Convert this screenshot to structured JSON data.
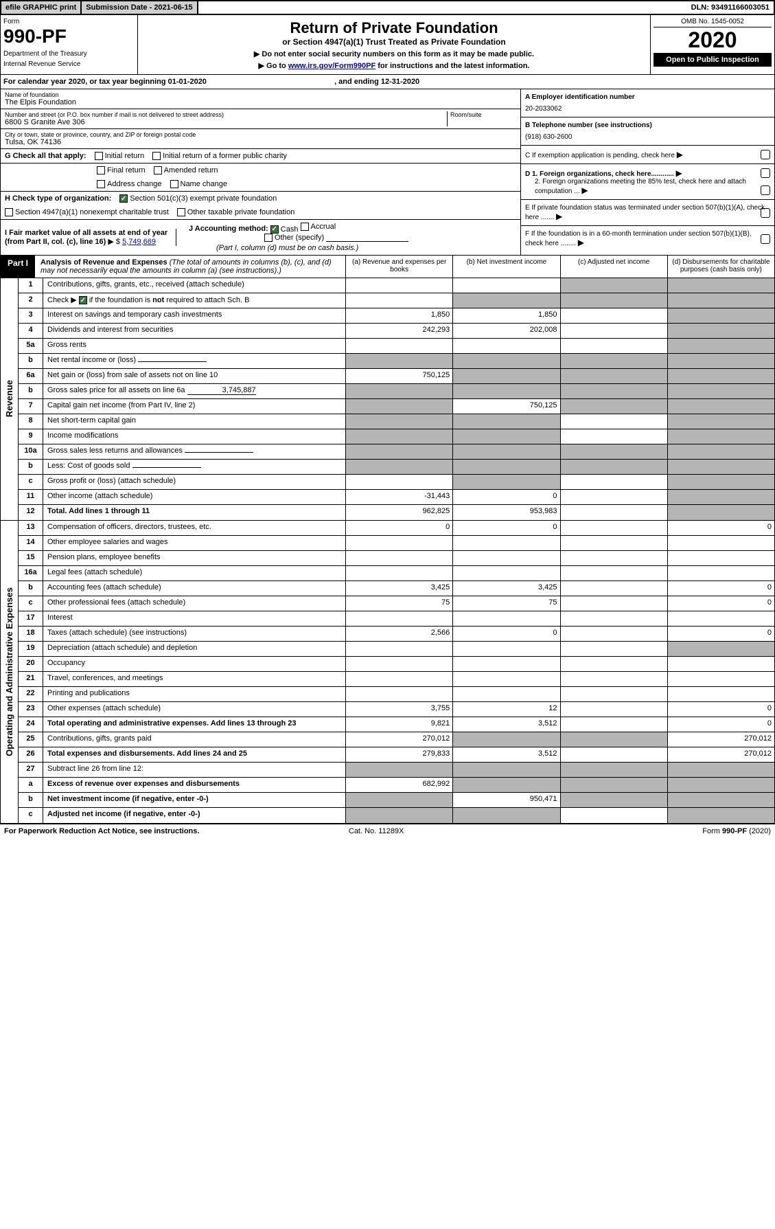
{
  "top": {
    "efile": "efile GRAPHIC print",
    "submission": "Submission Date - 2021-06-15",
    "dln": "DLN: 93491166003051"
  },
  "header": {
    "form_label": "Form",
    "form_number": "990-PF",
    "dept1": "Department of the Treasury",
    "dept2": "Internal Revenue Service",
    "title": "Return of Private Foundation",
    "subtitle": "or Section 4947(a)(1) Trust Treated as Private Foundation",
    "note1": "▶ Do not enter social security numbers on this form as it may be made public.",
    "note2_pre": "▶ Go to ",
    "note2_link": "www.irs.gov/Form990PF",
    "note2_post": " for instructions and the latest information.",
    "omb": "OMB No. 1545-0052",
    "year": "2020",
    "open": "Open to Public Inspection"
  },
  "calyear": {
    "text_pre": "For calendar year 2020, or tax year beginning ",
    "begin": "01-01-2020",
    "mid": " , and ending ",
    "end": "12-31-2020"
  },
  "info": {
    "name_lbl": "Name of foundation",
    "name_val": "The Elpis Foundation",
    "addr_lbl": "Number and street (or P.O. box number if mail is not delivered to street address)",
    "addr_val": "6800 S Granite Ave 306",
    "room_lbl": "Room/suite",
    "city_lbl": "City or town, state or province, country, and ZIP or foreign postal code",
    "city_val": "Tulsa, OK  74136",
    "a_lbl": "A Employer identification number",
    "a_val": "20-2033062",
    "b_lbl": "B Telephone number (see instructions)",
    "b_val": "(918) 630-2600",
    "c_lbl": "C  If exemption application is pending, check here",
    "d1": "D 1. Foreign organizations, check here............",
    "d2": "2. Foreign organizations meeting the 85% test, check here and attach computation ...",
    "e_lbl": "E  If private foundation status was terminated under section 507(b)(1)(A), check here .......",
    "f_lbl": "F  If the foundation is in a 60-month termination under section 507(b)(1)(B), check here ........"
  },
  "g": {
    "label": "G Check all that apply:",
    "initial": "Initial return",
    "initial_former": "Initial return of a former public charity",
    "final": "Final return",
    "amended": "Amended return",
    "addr_change": "Address change",
    "name_change": "Name change"
  },
  "h": {
    "label": "H Check type of organization:",
    "s501": "Section 501(c)(3) exempt private foundation",
    "s4947": "Section 4947(a)(1) nonexempt charitable trust",
    "other": "Other taxable private foundation"
  },
  "i": {
    "label": "I Fair market value of all assets at end of year (from Part II, col. (c), line 16)",
    "val": "5,749,669"
  },
  "j": {
    "label": "J Accounting method:",
    "cash": "Cash",
    "accrual": "Accrual",
    "other": "Other (specify)",
    "note": "(Part I, column (d) must be on cash basis.)"
  },
  "part1": {
    "label": "Part I",
    "title": "Analysis of Revenue and Expenses",
    "note": " (The total of amounts in columns (b), (c), and (d) may not necessarily equal the amounts in column (a) (see instructions).)",
    "col_a": "(a) Revenue and expenses per books",
    "col_b": "(b) Net investment income",
    "col_c": "(c) Adjusted net income",
    "col_d": "(d) Disbursements for charitable purposes (cash basis only)"
  },
  "sections": {
    "revenue": "Revenue",
    "opex": "Operating and Administrative Expenses"
  },
  "rows": [
    {
      "n": "1",
      "d": "Contributions, gifts, grants, etc., received (attach schedule)",
      "a": "",
      "b": "",
      "c": "g",
      "dd": "g"
    },
    {
      "n": "2",
      "d": "Check ▶ ☑ if the foundation is not required to attach Sch. B",
      "a": "",
      "b": "g",
      "c": "g",
      "dd": "g",
      "chk": true
    },
    {
      "n": "3",
      "d": "Interest on savings and temporary cash investments",
      "a": "1,850",
      "b": "1,850",
      "c": "",
      "dd": "g"
    },
    {
      "n": "4",
      "d": "Dividends and interest from securities",
      "a": "242,293",
      "b": "202,008",
      "c": "",
      "dd": "g"
    },
    {
      "n": "5a",
      "d": "Gross rents",
      "a": "",
      "b": "",
      "c": "",
      "dd": "g"
    },
    {
      "n": "b",
      "d": "Net rental income or (loss)",
      "a": "g",
      "b": "g",
      "c": "g",
      "dd": "g",
      "inline": true
    },
    {
      "n": "6a",
      "d": "Net gain or (loss) from sale of assets not on line 10",
      "a": "750,125",
      "b": "g",
      "c": "g",
      "dd": "g"
    },
    {
      "n": "b",
      "d": "Gross sales price for all assets on line 6a",
      "a": "g",
      "b": "g",
      "c": "g",
      "dd": "g",
      "inline": true,
      "inlineval": "3,745,887"
    },
    {
      "n": "7",
      "d": "Capital gain net income (from Part IV, line 2)",
      "a": "g",
      "b": "750,125",
      "c": "g",
      "dd": "g"
    },
    {
      "n": "8",
      "d": "Net short-term capital gain",
      "a": "g",
      "b": "g",
      "c": "",
      "dd": "g"
    },
    {
      "n": "9",
      "d": "Income modifications",
      "a": "g",
      "b": "g",
      "c": "",
      "dd": "g"
    },
    {
      "n": "10a",
      "d": "Gross sales less returns and allowances",
      "a": "g",
      "b": "g",
      "c": "g",
      "dd": "g",
      "inline": true
    },
    {
      "n": "b",
      "d": "Less: Cost of goods sold",
      "a": "g",
      "b": "g",
      "c": "g",
      "dd": "g",
      "inline": true
    },
    {
      "n": "c",
      "d": "Gross profit or (loss) (attach schedule)",
      "a": "",
      "b": "g",
      "c": "",
      "dd": "g"
    },
    {
      "n": "11",
      "d": "Other income (attach schedule)",
      "a": "-31,443",
      "b": "0",
      "c": "",
      "dd": "g"
    },
    {
      "n": "12",
      "d": "Total. Add lines 1 through 11",
      "a": "962,825",
      "b": "953,983",
      "c": "",
      "dd": "g",
      "bold": true
    }
  ],
  "oprows": [
    {
      "n": "13",
      "d": "Compensation of officers, directors, trustees, etc.",
      "a": "0",
      "b": "0",
      "c": "",
      "dd": "0"
    },
    {
      "n": "14",
      "d": "Other employee salaries and wages",
      "a": "",
      "b": "",
      "c": "",
      "dd": ""
    },
    {
      "n": "15",
      "d": "Pension plans, employee benefits",
      "a": "",
      "b": "",
      "c": "",
      "dd": ""
    },
    {
      "n": "16a",
      "d": "Legal fees (attach schedule)",
      "a": "",
      "b": "",
      "c": "",
      "dd": ""
    },
    {
      "n": "b",
      "d": "Accounting fees (attach schedule)",
      "a": "3,425",
      "b": "3,425",
      "c": "",
      "dd": "0"
    },
    {
      "n": "c",
      "d": "Other professional fees (attach schedule)",
      "a": "75",
      "b": "75",
      "c": "",
      "dd": "0"
    },
    {
      "n": "17",
      "d": "Interest",
      "a": "",
      "b": "",
      "c": "",
      "dd": ""
    },
    {
      "n": "18",
      "d": "Taxes (attach schedule) (see instructions)",
      "a": "2,566",
      "b": "0",
      "c": "",
      "dd": "0"
    },
    {
      "n": "19",
      "d": "Depreciation (attach schedule) and depletion",
      "a": "",
      "b": "",
      "c": "",
      "dd": "g"
    },
    {
      "n": "20",
      "d": "Occupancy",
      "a": "",
      "b": "",
      "c": "",
      "dd": ""
    },
    {
      "n": "21",
      "d": "Travel, conferences, and meetings",
      "a": "",
      "b": "",
      "c": "",
      "dd": ""
    },
    {
      "n": "22",
      "d": "Printing and publications",
      "a": "",
      "b": "",
      "c": "",
      "dd": ""
    },
    {
      "n": "23",
      "d": "Other expenses (attach schedule)",
      "a": "3,755",
      "b": "12",
      "c": "",
      "dd": "0"
    },
    {
      "n": "24",
      "d": "Total operating and administrative expenses. Add lines 13 through 23",
      "a": "9,821",
      "b": "3,512",
      "c": "",
      "dd": "0",
      "bold": true
    },
    {
      "n": "25",
      "d": "Contributions, gifts, grants paid",
      "a": "270,012",
      "b": "g",
      "c": "g",
      "dd": "270,012"
    },
    {
      "n": "26",
      "d": "Total expenses and disbursements. Add lines 24 and 25",
      "a": "279,833",
      "b": "3,512",
      "c": "",
      "dd": "270,012",
      "bold": true
    },
    {
      "n": "27",
      "d": "Subtract line 26 from line 12:",
      "a": "g",
      "b": "g",
      "c": "g",
      "dd": "g"
    },
    {
      "n": "a",
      "d": "Excess of revenue over expenses and disbursements",
      "a": "682,992",
      "b": "g",
      "c": "g",
      "dd": "g",
      "bold": true
    },
    {
      "n": "b",
      "d": "Net investment income (if negative, enter -0-)",
      "a": "g",
      "b": "950,471",
      "c": "g",
      "dd": "g",
      "bold": true
    },
    {
      "n": "c",
      "d": "Adjusted net income (if negative, enter -0-)",
      "a": "g",
      "b": "g",
      "c": "",
      "dd": "g",
      "bold": true
    }
  ],
  "footer": {
    "left": "For Paperwork Reduction Act Notice, see instructions.",
    "mid": "Cat. No. 11289X",
    "right": "Form 990-PF (2020)"
  },
  "colors": {
    "grey": "#b5b5b5",
    "link": "#0000cc",
    "check_green": "#2e7d32"
  }
}
